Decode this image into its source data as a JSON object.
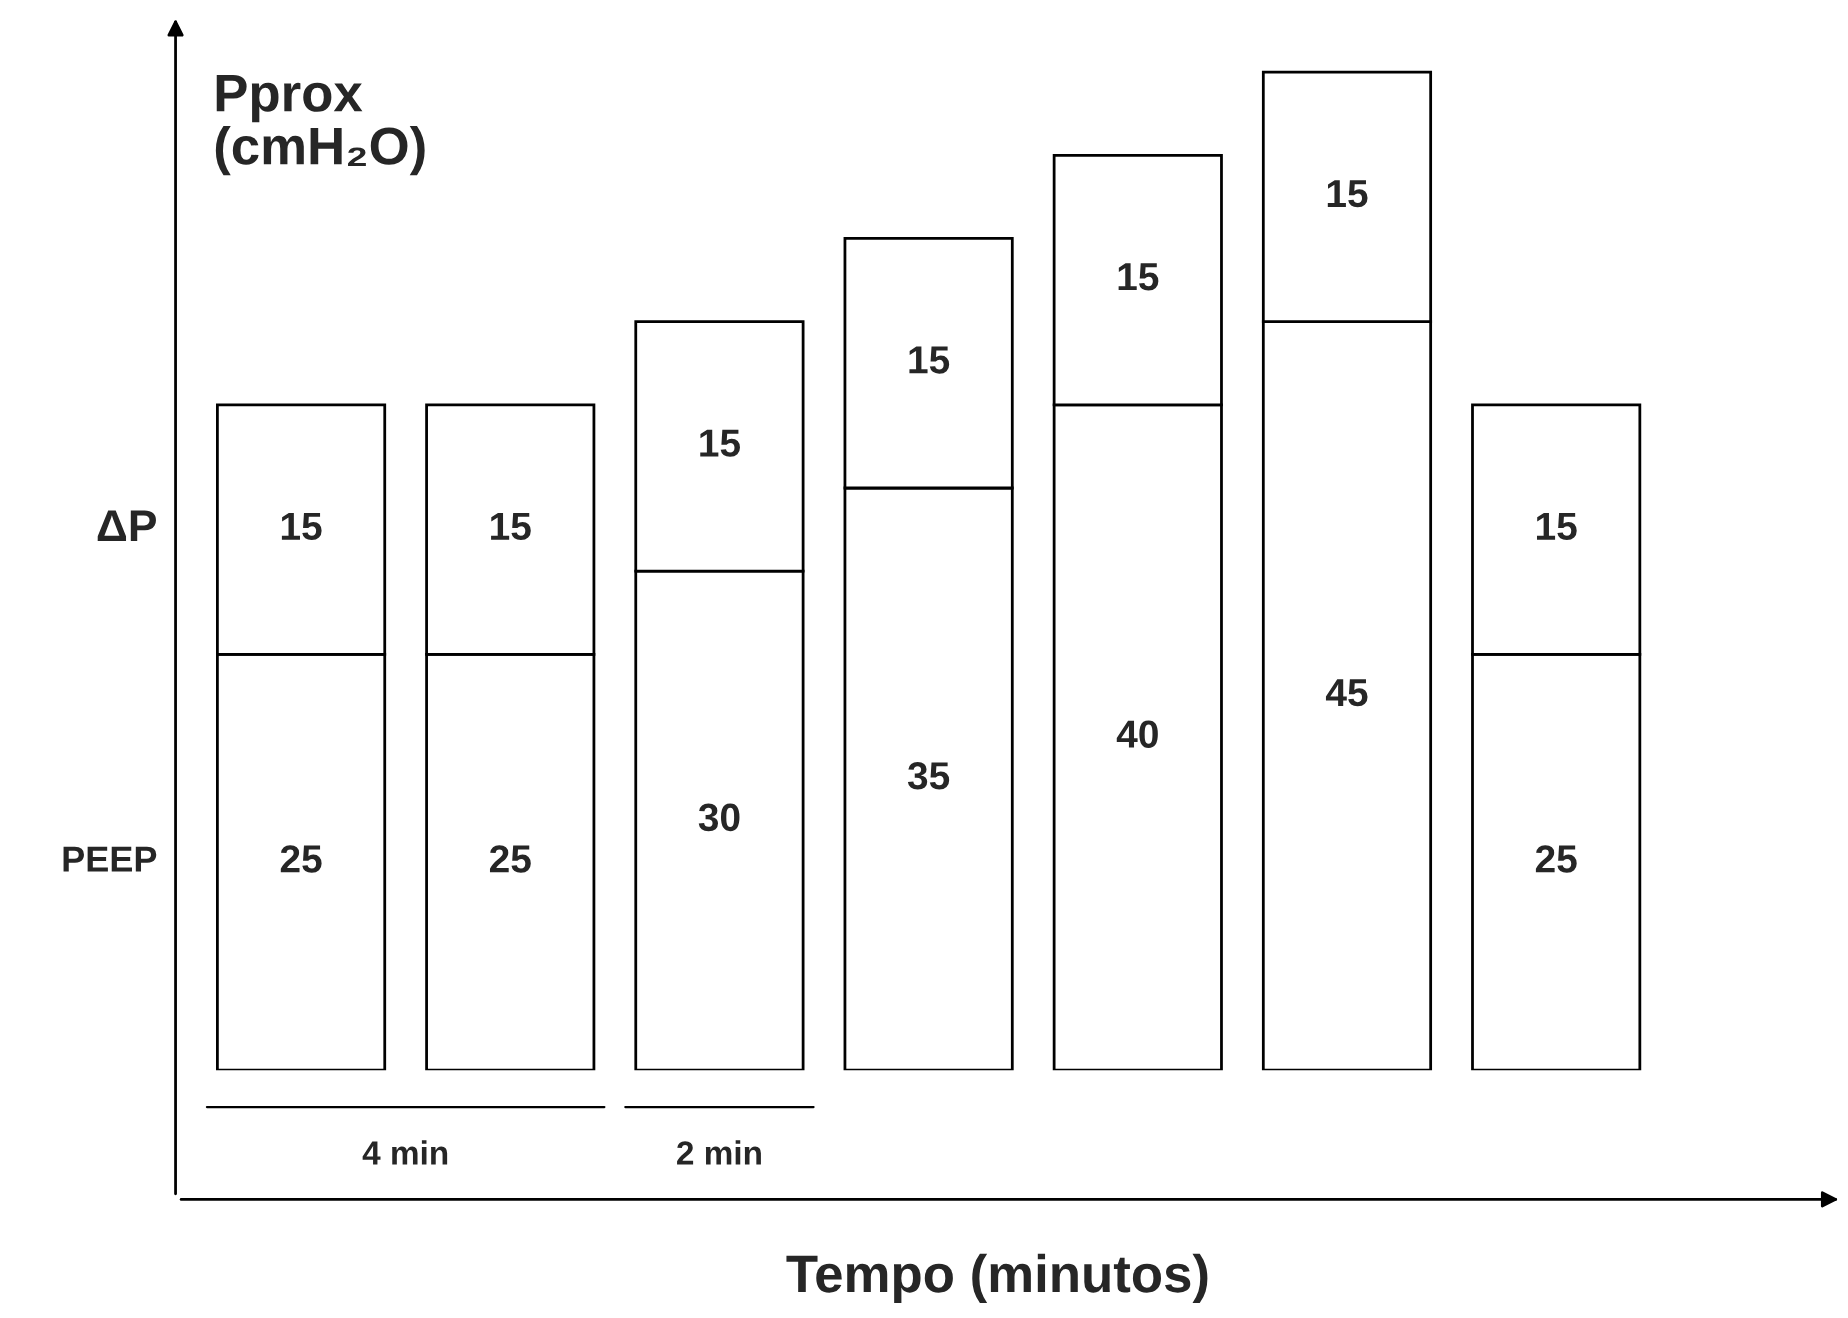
{
  "chart_data": {
    "type": "bar",
    "stacked": true,
    "data_labels": true,
    "xlabel": "Tempo (minutos)",
    "ylabel": "Pprox (cmH₂O)",
    "categories": [
      null,
      null,
      null,
      null,
      null,
      null,
      null
    ],
    "series": [
      {
        "name": "PEEP",
        "color": "#ffffff",
        "values": [
          25,
          25,
          30,
          35,
          40,
          45,
          25
        ]
      },
      {
        "name": "ΔP",
        "color": "#ffffff",
        "values": [
          15,
          15,
          15,
          15,
          15,
          15,
          15
        ]
      }
    ],
    "annotations": [
      "4 min",
      "2 min"
    ],
    "grid": false,
    "legend": false
  }
}
